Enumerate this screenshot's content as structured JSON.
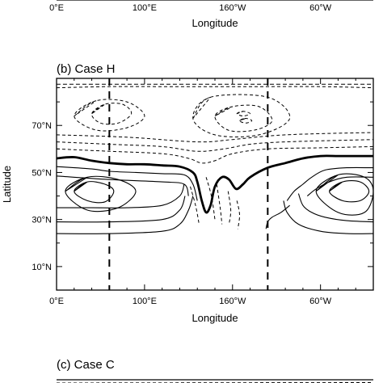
{
  "top_fragment": {
    "x_tick_labels": [
      "0°E",
      "100°E",
      "160°W",
      "60°W"
    ],
    "xlabel": "Longitude"
  },
  "chart_data": {
    "type": "contour",
    "panel_label": "(b) Case H",
    "xlabel": "Longitude",
    "ylabel": "Latitude",
    "x_ticks": [
      {
        "lon_east": 0,
        "label": "0°E"
      },
      {
        "lon_east": 100,
        "label": "100°E"
      },
      {
        "lon_east": 200,
        "label": "160°W"
      },
      {
        "lon_east": 300,
        "label": "60°W"
      }
    ],
    "y_ticks": [
      {
        "lat": 10,
        "label": "10°N"
      },
      {
        "lat": 30,
        "label": "30°N"
      },
      {
        "lat": 50,
        "label": "50°N"
      },
      {
        "lat": 70,
        "label": "70°N"
      }
    ],
    "xlim": [
      0,
      360
    ],
    "ylim": [
      0,
      90
    ],
    "grid": false,
    "vertical_dashed_lines_lon": [
      60,
      240
    ],
    "zero_contour": [
      [
        0,
        56
      ],
      [
        20,
        56.5
      ],
      [
        40,
        55
      ],
      [
        60,
        54
      ],
      [
        80,
        53.5
      ],
      [
        100,
        53.5
      ],
      [
        120,
        53
      ],
      [
        140,
        52.5
      ],
      [
        155,
        50
      ],
      [
        160,
        46
      ],
      [
        165,
        38
      ],
      [
        170,
        33
      ],
      [
        175,
        36
      ],
      [
        180,
        44
      ],
      [
        188,
        48
      ],
      [
        196,
        47
      ],
      [
        204,
        43
      ],
      [
        212,
        45
      ],
      [
        220,
        48
      ],
      [
        240,
        52
      ],
      [
        260,
        54
      ],
      [
        280,
        56
      ],
      [
        300,
        57
      ],
      [
        320,
        57
      ],
      [
        340,
        57
      ],
      [
        360,
        57
      ]
    ],
    "positive_contours": [
      [
        [
          0,
          52.5
        ],
        [
          40,
          51.5
        ],
        [
          60,
          50.5
        ],
        [
          90,
          50
        ],
        [
          120,
          49.5
        ],
        [
          145,
          49
        ],
        [
          155,
          45
        ],
        [
          160,
          38
        ]
      ],
      [
        [
          0,
          48.5
        ],
        [
          60,
          47
        ],
        [
          120,
          46
        ],
        [
          145,
          45
        ],
        [
          150,
          40
        ]
      ],
      [
        [
          0,
          35
        ],
        [
          40,
          35
        ],
        [
          80,
          35
        ],
        [
          120,
          36
        ],
        [
          140,
          40
        ],
        [
          145,
          45
        ]
      ],
      [
        [
          0,
          29
        ],
        [
          60,
          29
        ],
        [
          120,
          30
        ],
        [
          140,
          34
        ],
        [
          146,
          40
        ]
      ],
      [
        [
          0,
          24
        ],
        [
          60,
          24
        ],
        [
          120,
          25
        ],
        [
          140,
          28
        ],
        [
          150,
          34
        ],
        [
          155,
          40
        ]
      ],
      [
        [
          360,
          52
        ],
        [
          330,
          52
        ],
        [
          305,
          51
        ],
        [
          290,
          48
        ],
        [
          280,
          45
        ],
        [
          270,
          42
        ],
        [
          262,
          38
        ]
      ],
      [
        [
          360,
          48
        ],
        [
          330,
          48
        ],
        [
          310,
          46
        ],
        [
          295,
          43
        ],
        [
          285,
          40
        ]
      ],
      [
        [
          360,
          29
        ],
        [
          330,
          29.5
        ],
        [
          305,
          31
        ],
        [
          290,
          33
        ],
        [
          280,
          36
        ],
        [
          275,
          41
        ]
      ],
      [
        [
          360,
          24
        ],
        [
          330,
          24
        ],
        [
          300,
          25
        ],
        [
          275,
          28
        ],
        [
          262,
          33
        ],
        [
          258,
          38
        ]
      ],
      [
        [
          265,
          36
        ],
        [
          255,
          33
        ],
        [
          245,
          31
        ],
        [
          240,
          29
        ],
        [
          238,
          26
        ]
      ]
    ],
    "positive_closed_contours": [
      [
        [
          20,
          42
        ],
        [
          35,
          46
        ],
        [
          55,
          45
        ],
        [
          65,
          42
        ],
        [
          55,
          37.5
        ],
        [
          35,
          38
        ]
      ],
      [
        [
          10,
          42
        ],
        [
          35,
          48
        ],
        [
          70,
          47
        ],
        [
          90,
          42
        ],
        [
          70,
          35
        ],
        [
          35,
          34
        ]
      ],
      [
        [
          310,
          42
        ],
        [
          325,
          46
        ],
        [
          345,
          46
        ],
        [
          355,
          42
        ],
        [
          345,
          38
        ],
        [
          325,
          38
        ]
      ],
      [
        [
          295,
          42
        ],
        [
          320,
          49
        ],
        [
          350,
          48
        ],
        [
          360,
          42
        ],
        [
          350,
          33
        ],
        [
          320,
          33
        ]
      ]
    ],
    "negative_contours": [
      [
        [
          0,
          60
        ],
        [
          60,
          59
        ],
        [
          120,
          58
        ],
        [
          150,
          56
        ],
        [
          165,
          54
        ],
        [
          180,
          55
        ],
        [
          200,
          58
        ],
        [
          240,
          60
        ],
        [
          300,
          60.5
        ],
        [
          360,
          61
        ]
      ],
      [
        [
          0,
          63
        ],
        [
          60,
          62
        ],
        [
          120,
          61
        ],
        [
          160,
          59
        ],
        [
          190,
          60
        ],
        [
          220,
          62
        ],
        [
          260,
          63
        ],
        [
          360,
          64
        ]
      ],
      [
        [
          0,
          66
        ],
        [
          80,
          65
        ],
        [
          160,
          63
        ],
        [
          200,
          64
        ],
        [
          260,
          66
        ],
        [
          360,
          67
        ]
      ],
      [
        [
          0,
          86
        ],
        [
          60,
          86.5
        ],
        [
          120,
          86.5
        ],
        [
          180,
          86.5
        ],
        [
          240,
          86.5
        ],
        [
          300,
          86.5
        ],
        [
          360,
          86
        ]
      ],
      [
        [
          152,
          44
        ],
        [
          158,
          36
        ],
        [
          162,
          28
        ]
      ],
      [
        [
          170,
          48
        ],
        [
          176,
          40
        ],
        [
          180,
          30
        ]
      ],
      [
        [
          182,
          45
        ],
        [
          186,
          35
        ],
        [
          188,
          28
        ]
      ],
      [
        [
          195,
          42
        ],
        [
          198,
          34
        ],
        [
          196,
          28
        ]
      ],
      [
        [
          205,
          38
        ],
        [
          208,
          32
        ],
        [
          206,
          26
        ]
      ]
    ],
    "negative_closed_contours": [
      [
        [
          20,
          74
        ],
        [
          45,
          80.5
        ],
        [
          80,
          80
        ],
        [
          100,
          74
        ],
        [
          80,
          69
        ],
        [
          45,
          68
        ]
      ],
      [
        [
          40,
          75
        ],
        [
          55,
          79
        ],
        [
          75,
          79
        ],
        [
          85,
          75
        ],
        [
          70,
          71
        ],
        [
          50,
          71
        ]
      ],
      [
        [
          155,
          73
        ],
        [
          175,
          82
        ],
        [
          240,
          82
        ],
        [
          265,
          73
        ],
        [
          230,
          66
        ],
        [
          180,
          66
        ]
      ],
      [
        [
          180,
          74
        ],
        [
          200,
          78
        ],
        [
          230,
          78
        ],
        [
          245,
          72
        ],
        [
          225,
          68
        ],
        [
          195,
          68
        ]
      ],
      [
        [
          205,
          75
        ],
        [
          212,
          76
        ],
        [
          220,
          75
        ],
        [
          212,
          74
        ]
      ],
      [
        [
          208,
          72
        ],
        [
          215,
          73
        ],
        [
          222,
          72
        ],
        [
          215,
          71
        ]
      ]
    ]
  },
  "bottom_fragment": {
    "panel_label": "(c) Case C"
  }
}
